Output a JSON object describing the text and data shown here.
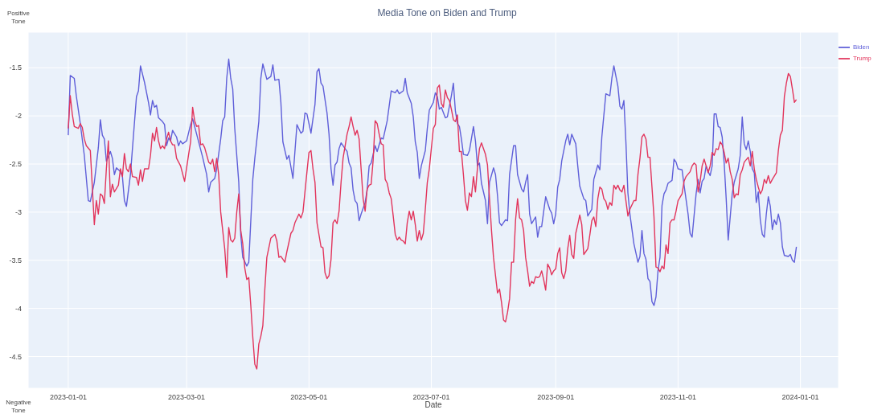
{
  "chart_data": {
    "type": "line",
    "title": "Media Tone on Biden and Trump",
    "xlabel": "Date",
    "annotations": [
      "Positive Tone",
      "Negative Tone"
    ],
    "xlim": [
      "2022-12-12",
      "2024-01-20"
    ],
    "xticks": [
      "2023-01-01",
      "2023-03-01",
      "2023-05-01",
      "2023-07-01",
      "2023-09-01",
      "2023-11-01",
      "2024-01-01"
    ],
    "ylim": [
      -4.83,
      -1.13
    ],
    "yticks": [
      -4.5,
      -4,
      -3.5,
      -3,
      -2.5,
      -2,
      -1.5
    ],
    "grid": true,
    "legend": "top right",
    "marker": "none",
    "line_style": "solid",
    "series": [
      {
        "name": "Biden",
        "color": "#5f5fd9",
        "x": [
          "2023-01-01",
          "2023-01-02",
          "2023-01-04",
          "2023-01-05",
          "2023-01-07",
          "2023-01-09",
          "2023-01-11",
          "2023-01-12",
          "2023-01-14",
          "2023-01-16",
          "2023-01-17",
          "2023-01-18",
          "2023-01-19",
          "2023-01-20",
          "2023-01-22",
          "2023-01-23",
          "2023-01-24",
          "2023-01-25",
          "2023-01-27",
          "2023-01-28",
          "2023-01-29",
          "2023-01-30",
          "2023-02-01",
          "2023-02-04",
          "2023-02-05",
          "2023-02-06",
          "2023-02-08",
          "2023-02-10",
          "2023-02-11",
          "2023-02-12",
          "2023-02-13",
          "2023-02-14",
          "2023-02-15",
          "2023-02-17",
          "2023-02-18",
          "2023-02-19",
          "2023-02-20",
          "2023-02-21",
          "2023-02-22",
          "2023-02-24",
          "2023-02-25",
          "2023-02-26",
          "2023-02-27",
          "2023-03-01",
          "2023-03-03",
          "2023-03-04",
          "2023-03-06",
          "2023-03-09",
          "2023-03-11",
          "2023-03-12",
          "2023-03-13",
          "2023-03-15",
          "2023-03-16",
          "2023-03-18",
          "2023-03-19",
          "2023-03-20",
          "2023-03-21",
          "2023-03-22",
          "2023-03-23",
          "2023-03-24",
          "2023-03-25",
          "2023-03-27",
          "2023-03-28",
          "2023-03-29",
          "2023-03-31",
          "2023-04-01",
          "2023-04-03",
          "2023-04-04",
          "2023-04-06",
          "2023-04-07",
          "2023-04-08",
          "2023-04-10",
          "2023-04-12",
          "2023-04-13",
          "2023-04-14",
          "2023-04-16",
          "2023-04-17",
          "2023-04-18",
          "2023-04-20",
          "2023-04-21",
          "2023-04-23",
          "2023-04-25",
          "2023-04-27",
          "2023-04-28",
          "2023-04-29",
          "2023-04-30",
          "2023-05-02",
          "2023-05-04",
          "2023-05-05",
          "2023-05-06",
          "2023-05-07",
          "2023-05-08",
          "2023-05-10",
          "2023-05-11",
          "2023-05-12",
          "2023-05-13",
          "2023-05-14",
          "2023-05-15",
          "2023-05-16",
          "2023-05-17",
          "2023-05-19",
          "2023-05-20",
          "2023-05-21",
          "2023-05-22",
          "2023-05-23",
          "2023-05-24",
          "2023-05-25",
          "2023-05-26",
          "2023-05-27",
          "2023-05-29",
          "2023-05-30",
          "2023-05-31",
          "2023-06-01",
          "2023-06-03",
          "2023-06-04",
          "2023-06-06",
          "2023-06-07",
          "2023-06-09",
          "2023-06-11",
          "2023-06-13",
          "2023-06-14",
          "2023-06-15",
          "2023-06-17",
          "2023-06-18",
          "2023-06-19",
          "2023-06-21",
          "2023-06-22",
          "2023-06-23",
          "2023-06-24",
          "2023-06-25",
          "2023-06-26",
          "2023-06-28",
          "2023-06-29",
          "2023-06-30",
          "2023-07-02",
          "2023-07-03",
          "2023-07-04",
          "2023-07-05",
          "2023-07-06",
          "2023-07-08",
          "2023-07-09",
          "2023-07-11",
          "2023-07-12",
          "2023-07-13",
          "2023-07-14",
          "2023-07-15",
          "2023-07-16",
          "2023-07-17",
          "2023-07-19",
          "2023-07-20",
          "2023-07-22",
          "2023-07-23",
          "2023-07-24",
          "2023-07-25",
          "2023-07-26",
          "2023-07-28",
          "2023-07-29",
          "2023-07-30",
          "2023-08-01",
          "2023-08-02",
          "2023-08-03",
          "2023-08-04",
          "2023-08-05",
          "2023-08-07",
          "2023-08-08",
          "2023-08-09",
          "2023-08-11",
          "2023-08-12",
          "2023-08-13",
          "2023-08-15",
          "2023-08-16",
          "2023-08-17",
          "2023-08-18",
          "2023-08-19",
          "2023-08-20",
          "2023-08-22",
          "2023-08-23",
          "2023-08-24",
          "2023-08-25",
          "2023-08-27",
          "2023-08-29",
          "2023-08-30",
          "2023-08-31",
          "2023-09-01",
          "2023-09-02",
          "2023-09-03",
          "2023-09-04",
          "2023-09-06",
          "2023-09-07",
          "2023-09-08",
          "2023-09-09",
          "2023-09-11",
          "2023-09-12",
          "2023-09-13",
          "2023-09-15",
          "2023-09-16",
          "2023-09-17",
          "2023-09-19",
          "2023-09-20",
          "2023-09-22",
          "2023-09-23",
          "2023-09-24",
          "2023-09-26",
          "2023-09-28",
          "2023-09-29",
          "2023-09-30",
          "2023-10-02",
          "2023-10-03",
          "2023-10-04",
          "2023-10-05",
          "2023-10-06",
          "2023-10-07",
          "2023-10-08",
          "2023-10-10",
          "2023-10-12",
          "2023-10-13",
          "2023-10-14",
          "2023-10-15",
          "2023-10-16",
          "2023-10-17",
          "2023-10-18",
          "2023-10-19",
          "2023-10-20",
          "2023-10-21",
          "2023-10-22",
          "2023-10-23",
          "2023-10-24",
          "2023-10-25",
          "2023-10-26",
          "2023-10-27",
          "2023-10-29",
          "2023-10-30",
          "2023-10-31",
          "2023-11-01",
          "2023-11-03",
          "2023-11-04",
          "2023-11-06",
          "2023-11-07",
          "2023-11-08",
          "2023-11-10",
          "2023-11-11",
          "2023-11-12",
          "2023-11-13",
          "2023-11-14",
          "2023-11-15",
          "2023-11-16",
          "2023-11-17",
          "2023-11-18",
          "2023-11-19",
          "2023-11-20",
          "2023-11-21",
          "2023-11-22",
          "2023-11-23",
          "2023-11-24",
          "2023-11-25",
          "2023-11-26",
          "2023-11-28",
          "2023-11-29",
          "2023-12-01",
          "2023-12-02",
          "2023-12-03",
          "2023-12-04",
          "2023-12-05",
          "2023-12-06",
          "2023-12-07",
          "2023-12-08",
          "2023-12-09",
          "2023-12-10",
          "2023-12-11",
          "2023-12-12",
          "2023-12-13",
          "2023-12-14",
          "2023-12-15",
          "2023-12-16",
          "2023-12-17",
          "2023-12-18",
          "2023-12-19",
          "2023-12-20",
          "2023-12-21",
          "2023-12-22",
          "2023-12-23",
          "2023-12-24",
          "2023-12-26",
          "2023-12-27",
          "2023-12-28",
          "2023-12-29",
          "2023-12-30"
        ],
        "values": [
          -2.2,
          -1.58,
          -1.61,
          -1.79,
          -2.08,
          -2.41,
          -2.88,
          -2.89,
          -2.69,
          -2.33,
          -2.04,
          -2.2,
          -2.24,
          -2.47,
          -2.37,
          -2.44,
          -2.61,
          -2.54,
          -2.58,
          -2.63,
          -2.88,
          -2.94,
          -2.61,
          -1.8,
          -1.74,
          -1.48,
          -1.65,
          -1.86,
          -1.99,
          -1.84,
          -1.91,
          -1.89,
          -2.02,
          -2.06,
          -2.09,
          -2.31,
          -2.23,
          -2.26,
          -2.15,
          -2.22,
          -2.31,
          -2.26,
          -2.29,
          -2.26,
          -2.09,
          -2.03,
          -2.19,
          -2.43,
          -2.61,
          -2.79,
          -2.69,
          -2.65,
          -2.55,
          -2.24,
          -2.05,
          -2.01,
          -1.61,
          -1.41,
          -1.61,
          -1.72,
          -2.13,
          -2.69,
          -3.24,
          -3.47,
          -3.56,
          -3.52,
          -2.66,
          -2.44,
          -2.06,
          -1.61,
          -1.46,
          -1.62,
          -1.59,
          -1.47,
          -1.63,
          -1.62,
          -1.86,
          -2.27,
          -2.45,
          -2.41,
          -2.65,
          -2.09,
          -2.18,
          -2.16,
          -1.97,
          -1.98,
          -2.18,
          -1.88,
          -1.54,
          -1.51,
          -1.66,
          -1.69,
          -1.97,
          -2.19,
          -2.55,
          -2.72,
          -2.51,
          -2.48,
          -2.34,
          -2.28,
          -2.34,
          -2.37,
          -2.49,
          -2.54,
          -2.77,
          -2.88,
          -2.91,
          -3.09,
          -3.02,
          -2.9,
          -2.77,
          -2.52,
          -2.49,
          -2.31,
          -2.37,
          -2.23,
          -2.24,
          -2.05,
          -1.74,
          -1.76,
          -1.73,
          -1.77,
          -1.74,
          -1.61,
          -1.76,
          -1.87,
          -2.01,
          -2.27,
          -2.38,
          -2.65,
          -2.52,
          -2.36,
          -2.13,
          -1.94,
          -1.86,
          -1.76,
          -1.8,
          -1.93,
          -1.91,
          -2.02,
          -2.01,
          -1.79,
          -1.66,
          -1.95,
          -2.08,
          -2.11,
          -2.24,
          -2.4,
          -2.41,
          -2.36,
          -2.11,
          -2.26,
          -2.52,
          -2.49,
          -2.7,
          -2.88,
          -3.12,
          -2.69,
          -2.54,
          -2.61,
          -2.83,
          -3.11,
          -3.14,
          -3.08,
          -3.09,
          -2.61,
          -2.31,
          -2.31,
          -2.61,
          -2.76,
          -2.79,
          -2.69,
          -2.61,
          -3.02,
          -3.12,
          -3.05,
          -3.26,
          -3.15,
          -3.15,
          -2.84,
          -2.97,
          -3.01,
          -3.12,
          -3.02,
          -2.74,
          -2.66,
          -2.47,
          -2.26,
          -2.19,
          -2.3,
          -2.19,
          -2.29,
          -2.52,
          -2.73,
          -2.86,
          -2.88,
          -3.04,
          -2.97,
          -2.66,
          -2.51,
          -2.56,
          -2.22,
          -1.77,
          -1.79,
          -1.61,
          -1.48,
          -1.69,
          -1.9,
          -1.93,
          -1.84,
          -2.27,
          -2.8,
          -3.02,
          -3.33,
          -3.52,
          -3.46,
          -3.19,
          -3.43,
          -3.49,
          -3.69,
          -3.72,
          -3.93,
          -3.97,
          -3.88,
          -3.61,
          -3.47,
          -2.93,
          -2.81,
          -2.77,
          -2.7,
          -2.67,
          -2.45,
          -2.48,
          -2.55,
          -2.56,
          -2.72,
          -3.02,
          -3.22,
          -3.26,
          -2.81,
          -2.66,
          -2.8,
          -2.68,
          -2.65,
          -2.52,
          -2.58,
          -2.62,
          -2.52,
          -1.98,
          -1.98,
          -2.11,
          -2.12,
          -2.22,
          -2.49,
          -2.86,
          -3.29,
          -2.81,
          -2.69,
          -2.55,
          -2.41,
          -2.01,
          -2.29,
          -2.35,
          -2.26,
          -2.37,
          -2.55,
          -2.59,
          -2.9,
          -2.79,
          -3.08,
          -3.23,
          -3.26,
          -3.02,
          -2.84,
          -2.94,
          -3.18,
          -3.08,
          -3.13,
          -3.02,
          -3.11,
          -3.36,
          -3.45,
          -3.46,
          -3.44,
          -3.5,
          -3.52,
          -3.36
        ]
      },
      {
        "name": "Trump",
        "color": "#e2355c",
        "x": [
          "2023-01-01",
          "2023-01-02",
          "2023-01-03",
          "2023-01-04",
          "2023-01-06",
          "2023-01-07",
          "2023-01-08",
          "2023-01-09",
          "2023-01-10",
          "2023-01-12",
          "2023-01-13",
          "2023-01-14",
          "2023-01-15",
          "2023-01-16",
          "2023-01-17",
          "2023-01-18",
          "2023-01-19",
          "2023-01-20",
          "2023-01-21",
          "2023-01-22",
          "2023-01-23",
          "2023-01-24",
          "2023-01-26",
          "2023-01-27",
          "2023-01-28",
          "2023-01-29",
          "2023-01-30",
          "2023-01-31",
          "2023-02-01",
          "2023-02-02",
          "2023-02-04",
          "2023-02-05",
          "2023-02-06",
          "2023-02-07",
          "2023-02-08",
          "2023-02-10",
          "2023-02-11",
          "2023-02-12",
          "2023-02-13",
          "2023-02-14",
          "2023-02-15",
          "2023-02-16",
          "2023-02-17",
          "2023-02-18",
          "2023-02-19",
          "2023-02-20",
          "2023-02-21",
          "2023-02-22",
          "2023-02-23",
          "2023-02-24",
          "2023-02-25",
          "2023-02-26",
          "2023-02-28",
          "2023-03-02",
          "2023-03-03",
          "2023-03-04",
          "2023-03-05",
          "2023-03-06",
          "2023-03-07",
          "2023-03-08",
          "2023-03-09",
          "2023-03-10",
          "2023-03-12",
          "2023-03-13",
          "2023-03-14",
          "2023-03-15",
          "2023-03-16",
          "2023-03-17",
          "2023-03-18",
          "2023-03-20",
          "2023-03-21",
          "2023-03-22",
          "2023-03-23",
          "2023-03-24",
          "2023-03-25",
          "2023-03-26",
          "2023-03-27",
          "2023-03-28",
          "2023-03-29",
          "2023-03-30",
          "2023-03-31",
          "2023-04-01",
          "2023-04-02",
          "2023-04-03",
          "2023-04-04",
          "2023-04-05",
          "2023-04-06",
          "2023-04-07",
          "2023-04-08",
          "2023-04-09",
          "2023-04-10",
          "2023-04-12",
          "2023-04-14",
          "2023-04-15",
          "2023-04-16",
          "2023-04-17",
          "2023-04-19",
          "2023-04-20",
          "2023-04-22",
          "2023-04-23",
          "2023-04-24",
          "2023-04-26",
          "2023-04-27",
          "2023-04-28",
          "2023-04-30",
          "2023-05-01",
          "2023-05-02",
          "2023-05-03",
          "2023-05-04",
          "2023-05-05",
          "2023-05-07",
          "2023-05-08",
          "2023-05-09",
          "2023-05-10",
          "2023-05-11",
          "2023-05-12",
          "2023-05-13",
          "2023-05-14",
          "2023-05-15",
          "2023-05-16",
          "2023-05-17",
          "2023-05-18",
          "2023-05-20",
          "2023-05-21",
          "2023-05-22",
          "2023-05-23",
          "2023-05-24",
          "2023-05-25",
          "2023-05-26",
          "2023-05-27",
          "2023-05-28",
          "2023-05-29",
          "2023-05-30",
          "2023-05-31",
          "2023-06-01",
          "2023-06-02",
          "2023-06-03",
          "2023-06-04",
          "2023-06-05",
          "2023-06-06",
          "2023-06-07",
          "2023-06-08",
          "2023-06-09",
          "2023-06-10",
          "2023-06-11",
          "2023-06-12",
          "2023-06-13",
          "2023-06-14",
          "2023-06-15",
          "2023-06-16",
          "2023-06-17",
          "2023-06-18",
          "2023-06-19",
          "2023-06-20",
          "2023-06-21",
          "2023-06-22",
          "2023-06-23",
          "2023-06-24",
          "2023-06-25",
          "2023-06-26",
          "2023-06-27",
          "2023-06-28",
          "2023-06-29",
          "2023-06-30",
          "2023-07-02",
          "2023-07-03",
          "2023-07-04",
          "2023-07-05",
          "2023-07-06",
          "2023-07-07",
          "2023-07-08",
          "2023-07-09",
          "2023-07-10",
          "2023-07-11",
          "2023-07-12",
          "2023-07-13",
          "2023-07-14",
          "2023-07-15",
          "2023-07-16",
          "2023-07-17",
          "2023-07-18",
          "2023-07-19",
          "2023-07-20",
          "2023-07-21",
          "2023-07-22",
          "2023-07-23",
          "2023-07-24",
          "2023-07-25",
          "2023-07-26",
          "2023-07-28",
          "2023-07-29",
          "2023-07-30",
          "2023-07-31",
          "2023-08-01",
          "2023-08-02",
          "2023-08-03",
          "2023-08-04",
          "2023-08-05",
          "2023-08-06",
          "2023-08-07",
          "2023-08-08",
          "2023-08-09",
          "2023-08-10",
          "2023-08-11",
          "2023-08-12",
          "2023-08-13",
          "2023-08-14",
          "2023-08-15",
          "2023-08-16",
          "2023-08-17",
          "2023-08-18",
          "2023-08-19",
          "2023-08-20",
          "2023-08-21",
          "2023-08-22",
          "2023-08-23",
          "2023-08-24",
          "2023-08-25",
          "2023-08-26",
          "2023-08-27",
          "2023-08-28",
          "2023-08-29",
          "2023-08-30",
          "2023-08-31",
          "2023-09-01",
          "2023-09-02",
          "2023-09-03",
          "2023-09-04",
          "2023-09-05",
          "2023-09-06",
          "2023-09-07",
          "2023-09-08",
          "2023-09-09",
          "2023-09-10",
          "2023-09-11",
          "2023-09-12",
          "2023-09-13",
          "2023-09-14",
          "2023-09-15",
          "2023-09-16",
          "2023-09-17",
          "2023-09-18",
          "2023-09-19",
          "2023-09-20",
          "2023-09-21",
          "2023-09-22",
          "2023-09-23",
          "2023-09-24",
          "2023-09-25",
          "2023-09-26",
          "2023-09-27",
          "2023-09-28",
          "2023-09-29",
          "2023-09-30",
          "2023-10-01",
          "2023-10-02",
          "2023-10-03",
          "2023-10-04",
          "2023-10-05",
          "2023-10-07",
          "2023-10-08",
          "2023-10-10",
          "2023-10-11",
          "2023-10-12",
          "2023-10-13",
          "2023-10-14",
          "2023-10-15",
          "2023-10-16",
          "2023-10-17",
          "2023-10-18",
          "2023-10-19",
          "2023-10-20",
          "2023-10-21",
          "2023-10-22",
          "2023-10-23",
          "2023-10-24",
          "2023-10-25",
          "2023-10-26",
          "2023-10-27",
          "2023-10-28",
          "2023-10-29",
          "2023-10-30",
          "2023-10-31",
          "2023-11-01",
          "2023-11-03",
          "2023-11-04",
          "2023-11-05",
          "2023-11-07",
          "2023-11-08",
          "2023-11-09",
          "2023-11-10",
          "2023-11-11",
          "2023-11-12",
          "2023-11-13",
          "2023-11-14",
          "2023-11-15",
          "2023-11-16",
          "2023-11-17",
          "2023-11-18",
          "2023-11-19",
          "2023-11-20",
          "2023-11-21",
          "2023-11-22",
          "2023-11-23",
          "2023-11-24",
          "2023-11-25",
          "2023-11-26",
          "2023-11-27",
          "2023-11-28",
          "2023-11-29",
          "2023-11-30",
          "2023-12-01",
          "2023-12-02",
          "2023-12-03",
          "2023-12-04",
          "2023-12-06",
          "2023-12-07",
          "2023-12-08",
          "2023-12-09",
          "2023-12-10",
          "2023-12-11",
          "2023-12-12",
          "2023-12-13",
          "2023-12-14",
          "2023-12-15",
          "2023-12-16",
          "2023-12-17",
          "2023-12-18",
          "2023-12-20",
          "2023-12-21",
          "2023-12-22",
          "2023-12-23",
          "2023-12-24",
          "2023-12-25",
          "2023-12-26",
          "2023-12-27",
          "2023-12-28",
          "2023-12-29",
          "2023-12-30"
        ],
        "values": [
          -2.13,
          -1.79,
          -1.98,
          -2.11,
          -2.13,
          -2.08,
          -2.12,
          -2.24,
          -2.31,
          -2.36,
          -2.74,
          -3.13,
          -2.88,
          -3.02,
          -2.81,
          -2.83,
          -2.91,
          -2.55,
          -2.26,
          -2.84,
          -2.71,
          -2.79,
          -2.72,
          -2.55,
          -2.63,
          -2.39,
          -2.55,
          -2.58,
          -2.5,
          -2.63,
          -2.64,
          -2.72,
          -2.56,
          -2.68,
          -2.55,
          -2.55,
          -2.41,
          -2.18,
          -2.26,
          -2.12,
          -2.26,
          -2.34,
          -2.31,
          -2.34,
          -2.24,
          -2.17,
          -2.26,
          -2.3,
          -2.3,
          -2.44,
          -2.48,
          -2.52,
          -2.68,
          -2.4,
          -2.27,
          -1.91,
          -2.05,
          -2.11,
          -2.1,
          -2.3,
          -2.29,
          -2.33,
          -2.48,
          -2.5,
          -2.45,
          -2.58,
          -2.44,
          -2.61,
          -3.0,
          -3.38,
          -3.68,
          -3.16,
          -3.29,
          -3.31,
          -3.27,
          -3.0,
          -2.81,
          -3.19,
          -3.33,
          -3.58,
          -3.7,
          -3.68,
          -3.97,
          -4.3,
          -4.58,
          -4.63,
          -4.37,
          -4.29,
          -4.18,
          -3.8,
          -3.47,
          -3.27,
          -3.23,
          -3.3,
          -3.47,
          -3.46,
          -3.52,
          -3.41,
          -3.22,
          -3.19,
          -3.11,
          -3.02,
          -3.06,
          -3.0,
          -2.58,
          -2.38,
          -2.36,
          -2.55,
          -2.69,
          -3.11,
          -3.36,
          -3.37,
          -3.63,
          -3.69,
          -3.66,
          -3.49,
          -3.11,
          -3.08,
          -3.12,
          -2.99,
          -2.69,
          -2.44,
          -2.19,
          -2.11,
          -2.01,
          -2.11,
          -2.2,
          -2.15,
          -2.24,
          -2.55,
          -2.86,
          -2.99,
          -2.76,
          -2.72,
          -2.71,
          -2.46,
          -2.05,
          -2.08,
          -2.19,
          -2.29,
          -2.3,
          -2.66,
          -2.7,
          -2.8,
          -2.86,
          -3.04,
          -3.23,
          -3.29,
          -3.26,
          -3.29,
          -3.3,
          -3.33,
          -3.11,
          -2.99,
          -3.08,
          -2.99,
          -3.13,
          -3.3,
          -3.19,
          -3.29,
          -3.22,
          -2.97,
          -2.69,
          -2.55,
          -2.13,
          -2.09,
          -1.71,
          -1.68,
          -1.87,
          -1.91,
          -1.73,
          -1.81,
          -1.84,
          -1.93,
          -2.04,
          -2.06,
          -1.99,
          -2.37,
          -2.37,
          -2.61,
          -2.88,
          -2.98,
          -2.8,
          -2.84,
          -2.63,
          -2.79,
          -2.54,
          -2.34,
          -2.28,
          -2.4,
          -2.51,
          -2.86,
          -3.19,
          -3.47,
          -3.66,
          -3.84,
          -3.8,
          -3.94,
          -4.12,
          -4.14,
          -4.04,
          -3.9,
          -3.52,
          -3.52,
          -3.08,
          -2.86,
          -3.06,
          -3.08,
          -3.19,
          -3.47,
          -3.61,
          -3.77,
          -3.72,
          -3.74,
          -3.67,
          -3.68,
          -3.67,
          -3.61,
          -3.7,
          -3.81,
          -3.54,
          -3.58,
          -3.65,
          -3.61,
          -3.59,
          -3.43,
          -3.37,
          -3.63,
          -3.69,
          -3.61,
          -3.38,
          -3.24,
          -3.44,
          -3.48,
          -3.22,
          -3.13,
          -3.03,
          -3.13,
          -3.44,
          -3.41,
          -3.38,
          -3.24,
          -3.09,
          -3.05,
          -3.15,
          -2.86,
          -2.74,
          -2.76,
          -2.86,
          -2.89,
          -2.97,
          -2.9,
          -2.93,
          -2.72,
          -2.76,
          -2.72,
          -2.77,
          -2.79,
          -2.72,
          -3.04,
          -2.97,
          -2.88,
          -2.88,
          -2.61,
          -2.44,
          -2.22,
          -2.19,
          -2.24,
          -2.43,
          -2.43,
          -2.74,
          -3.05,
          -3.57,
          -3.58,
          -3.62,
          -3.56,
          -3.59,
          -3.34,
          -3.43,
          -3.11,
          -3.08,
          -3.08,
          -2.99,
          -2.88,
          -2.81,
          -2.68,
          -2.63,
          -2.58,
          -2.52,
          -2.49,
          -2.51,
          -2.79,
          -2.68,
          -2.52,
          -2.45,
          -2.52,
          -2.59,
          -2.52,
          -2.38,
          -2.41,
          -2.34,
          -2.35,
          -2.27,
          -2.3,
          -2.38,
          -2.49,
          -2.44,
          -2.58,
          -2.66,
          -2.85,
          -2.81,
          -2.82,
          -2.61,
          -2.56,
          -2.48,
          -2.43,
          -2.52,
          -2.37,
          -2.55,
          -2.66,
          -2.74,
          -2.81,
          -2.77,
          -2.66,
          -2.7,
          -2.62,
          -2.7,
          -2.66,
          -2.59,
          -2.36,
          -2.2,
          -2.15,
          -1.8,
          -1.66,
          -1.56,
          -1.59,
          -1.72,
          -1.86,
          -1.83
        ]
      }
    ]
  }
}
